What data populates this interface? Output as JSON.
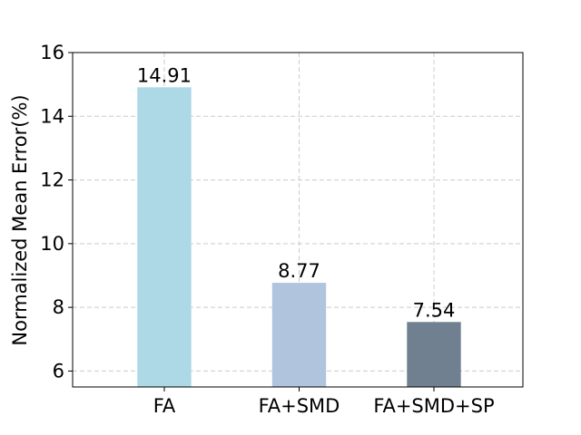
{
  "chart_data": {
    "type": "bar",
    "categories": [
      "FA",
      "FA+SMD",
      "FA+SMD+SP"
    ],
    "values": [
      14.91,
      8.77,
      7.54
    ],
    "value_labels": [
      "14.91",
      "8.77",
      "7.54"
    ],
    "colors": [
      "#add8e6",
      "#b0c4de",
      "#708090"
    ],
    "title": "",
    "xlabel": "",
    "ylabel": "Normalized Mean Error(%)",
    "ylim": [
      5.5,
      16
    ],
    "yticks": [
      6,
      8,
      10,
      12,
      14,
      16
    ],
    "grid": true,
    "legend": false
  }
}
